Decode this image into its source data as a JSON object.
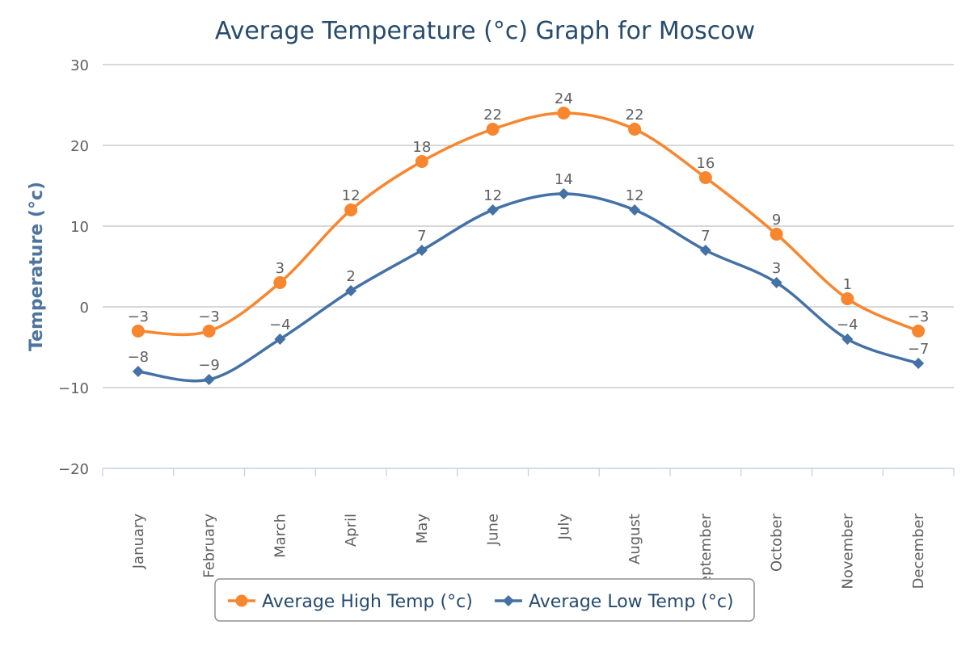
{
  "chart_data": {
    "type": "line",
    "title": "Average Temperature (°c) Graph for Moscow",
    "ylabel": "Temperature (°c)",
    "xlabel": "",
    "categories": [
      "January",
      "February",
      "March",
      "April",
      "May",
      "June",
      "July",
      "August",
      "September",
      "October",
      "November",
      "December"
    ],
    "ylim": [
      -20,
      30
    ],
    "yticks": [
      30,
      20,
      10,
      0,
      -10,
      -20
    ],
    "ytick_labels": [
      "30",
      "20",
      "10",
      "0",
      "−10",
      "−20"
    ],
    "grid": true,
    "legend_position": "bottom-center",
    "series": [
      {
        "name": "Average High Temp (°c)",
        "values": [
          -3,
          -3,
          3,
          12,
          18,
          22,
          24,
          22,
          16,
          9,
          1,
          -3
        ],
        "labels": [
          "−3",
          "−3",
          "3",
          "12",
          "18",
          "22",
          "24",
          "22",
          "16",
          "9",
          "1",
          "−3"
        ],
        "color": "#f7862f",
        "marker": "circle"
      },
      {
        "name": "Average Low Temp (°c)",
        "values": [
          -8,
          -9,
          -4,
          2,
          7,
          12,
          14,
          12,
          7,
          3,
          -4,
          -7
        ],
        "labels": [
          "−8",
          "−9",
          "−4",
          "2",
          "7",
          "12",
          "14",
          "12",
          "7",
          "3",
          "−4",
          "−7"
        ],
        "color": "#4471a6",
        "marker": "diamond"
      }
    ]
  }
}
